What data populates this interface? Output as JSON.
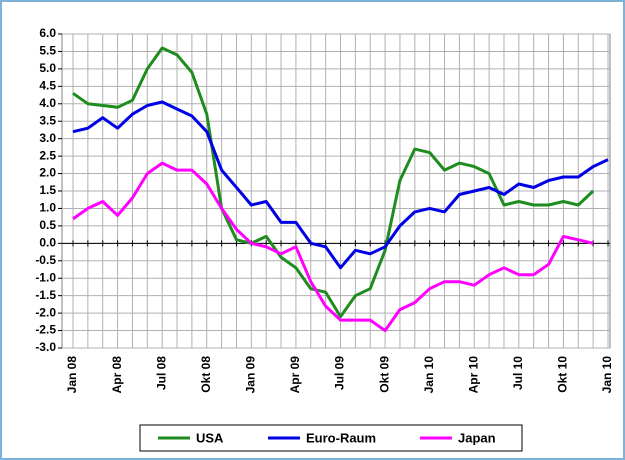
{
  "chart_data": {
    "type": "line",
    "categories": [
      "Jan 08",
      null,
      null,
      "Apr 08",
      null,
      null,
      "Jul 08",
      null,
      null,
      "Okt 08",
      null,
      null,
      "Jan 09",
      null,
      null,
      "Apr 09",
      null,
      null,
      "Jul 09",
      null,
      null,
      "Okt 09",
      null,
      null,
      "Jan 10",
      null,
      null,
      "Apr 10",
      null,
      null,
      "Jul 10",
      null,
      null,
      "Okt 10",
      null,
      null,
      "Jan 10"
    ],
    "series": [
      {
        "name": "USA",
        "color": "#1e8c1e",
        "values": [
          4.3,
          4.0,
          3.95,
          3.9,
          4.1,
          5.0,
          5.6,
          5.4,
          4.9,
          3.7,
          1.0,
          0.1,
          0.0,
          0.2,
          -0.4,
          -0.7,
          -1.3,
          -1.4,
          -2.1,
          -1.5,
          -1.3,
          -0.2,
          1.8,
          2.7,
          2.6,
          2.1,
          2.3,
          2.2,
          2.0,
          1.1,
          1.2,
          1.1,
          1.1,
          1.2,
          1.1,
          1.5,
          null
        ]
      },
      {
        "name": "Euro-Raum",
        "color": "#0000e6",
        "values": [
          3.2,
          3.3,
          3.6,
          3.3,
          3.7,
          3.95,
          4.05,
          3.85,
          3.65,
          3.2,
          2.1,
          1.6,
          1.1,
          1.2,
          0.6,
          0.6,
          0.0,
          -0.1,
          -0.7,
          -0.2,
          -0.3,
          -0.1,
          0.5,
          0.9,
          1.0,
          0.9,
          1.4,
          1.5,
          1.6,
          1.4,
          1.7,
          1.6,
          1.8,
          1.9,
          1.9,
          2.2,
          2.4
        ]
      },
      {
        "name": "Japan",
        "color": "#ff00ff",
        "values": [
          0.7,
          1.0,
          1.2,
          0.8,
          1.3,
          2.0,
          2.3,
          2.1,
          2.1,
          1.7,
          1.0,
          0.4,
          0.0,
          -0.1,
          -0.3,
          -0.1,
          -1.1,
          -1.8,
          -2.2,
          -2.2,
          -2.2,
          -2.5,
          -1.9,
          -1.7,
          -1.3,
          -1.1,
          -1.1,
          -1.2,
          -0.9,
          -0.7,
          -0.9,
          -0.9,
          -0.6,
          0.2,
          0.1,
          0.0,
          null
        ]
      }
    ],
    "ylim": [
      -3,
      6
    ],
    "yticks": [
      {
        "value": -3,
        "label": "-3.0"
      },
      {
        "value": -2.5,
        "label": "-2.5"
      },
      {
        "value": -2,
        "label": "-2.0"
      },
      {
        "value": -1.5,
        "label": "-1.5"
      },
      {
        "value": -1,
        "label": "-1.0"
      },
      {
        "value": -0.5,
        "label": "-0.5"
      },
      {
        "value": 0,
        "label": "0.0"
      },
      {
        "value": 0.5,
        "label": "0.5"
      },
      {
        "value": 1,
        "label": "1.0"
      },
      {
        "value": 1.5,
        "label": "1.5"
      },
      {
        "value": 2,
        "label": "2.0"
      },
      {
        "value": 2.5,
        "label": "2.5"
      },
      {
        "value": 3,
        "label": "3.0"
      },
      {
        "value": 3.5,
        "label": "3.5"
      },
      {
        "value": 4,
        "label": "4.0"
      },
      {
        "value": 4.5,
        "label": "4.5"
      },
      {
        "value": 5,
        "label": "5.0"
      },
      {
        "value": 5.5,
        "label": "5.5"
      },
      {
        "value": 6,
        "label": "6.0"
      }
    ],
    "grid": true,
    "legend": "bottom"
  }
}
